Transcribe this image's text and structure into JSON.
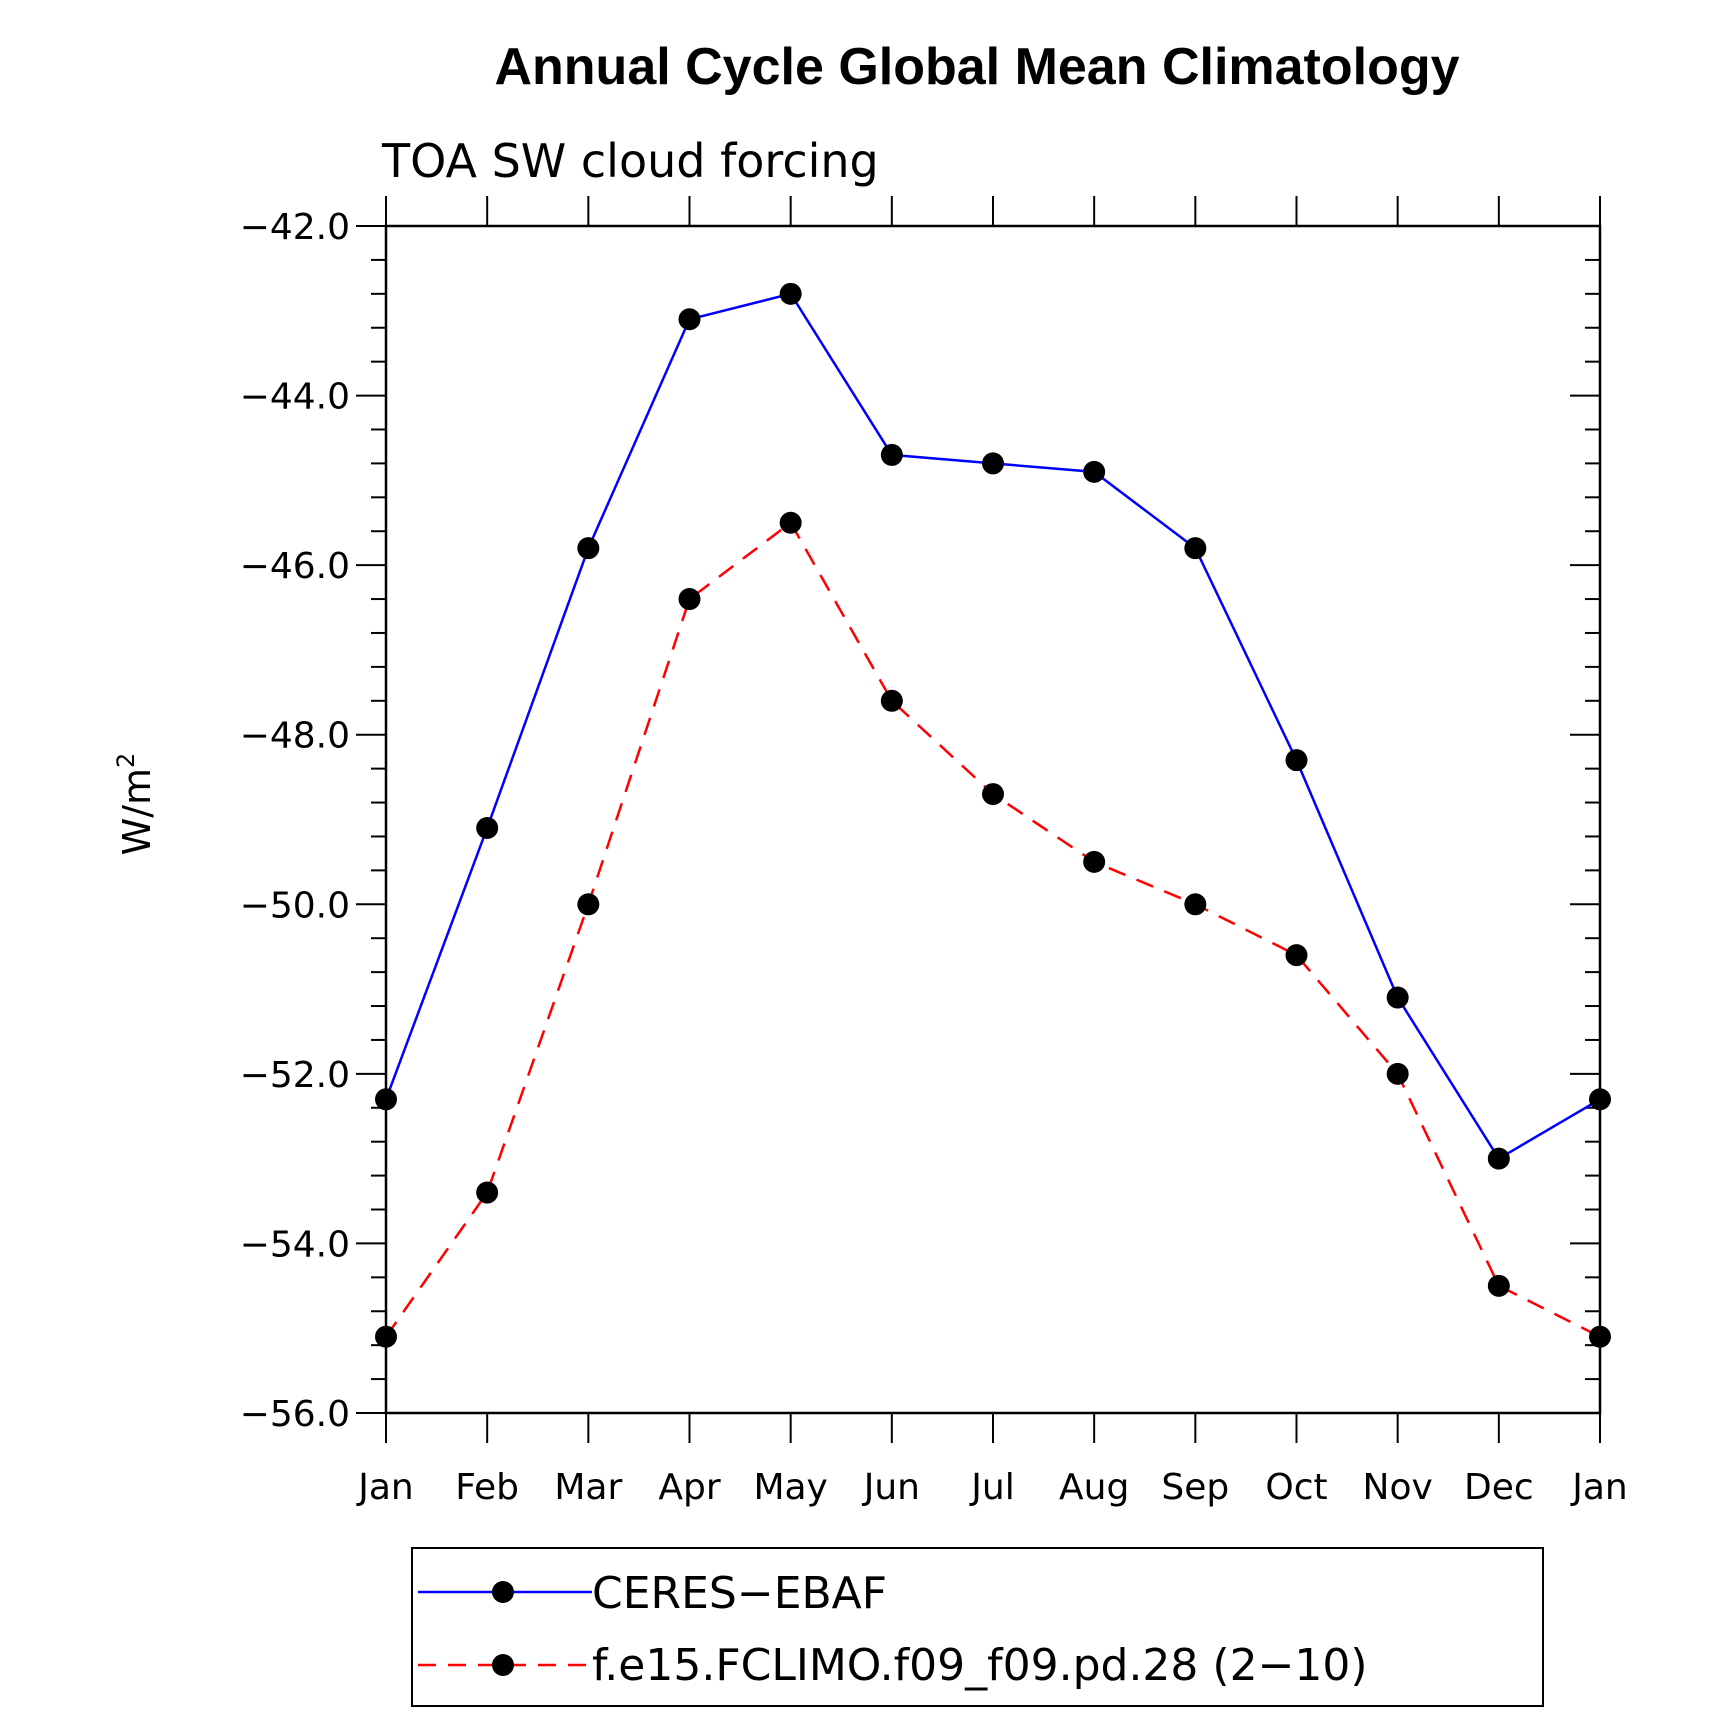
{
  "chart_data": {
    "type": "line",
    "title": "Annual Cycle Global Mean Climatology",
    "subtitle": "TOA SW cloud forcing",
    "ylabel": "W/m",
    "ylabel_superscript": "2",
    "categories": [
      "Jan",
      "Feb",
      "Mar",
      "Apr",
      "May",
      "Jun",
      "Jul",
      "Aug",
      "Sep",
      "Oct",
      "Nov",
      "Dec",
      "Jan"
    ],
    "ylim": [
      -56.0,
      -42.0
    ],
    "y_ticks": [
      "−42.0",
      "−44.0",
      "−46.0",
      "−48.0",
      "−50.0",
      "−52.0",
      "−54.0",
      "−56.0"
    ],
    "y_tick_values": [
      -42.0,
      -44.0,
      -46.0,
      -48.0,
      -50.0,
      -52.0,
      -54.0,
      -56.0
    ],
    "grid": false,
    "legend_position": "bottom",
    "series": [
      {
        "name": "CERES−EBAF",
        "color": "#0000ff",
        "line_style": "solid",
        "marker": "filled-circle",
        "values": [
          -52.3,
          -49.1,
          -45.8,
          -43.1,
          -42.8,
          -44.7,
          -44.8,
          -44.9,
          -45.8,
          -48.3,
          -51.1,
          -53.0,
          -52.3
        ]
      },
      {
        "name": "f.e15.FCLIMO.f09_f09.pd.28 (2−10)",
        "color": "#ff0000",
        "line_style": "dashed",
        "marker": "filled-circle",
        "values": [
          -55.1,
          -53.4,
          -50.0,
          -46.4,
          -45.5,
          -47.6,
          -48.7,
          -49.5,
          -50.0,
          -50.6,
          -52.0,
          -54.5,
          -55.1
        ]
      }
    ]
  }
}
